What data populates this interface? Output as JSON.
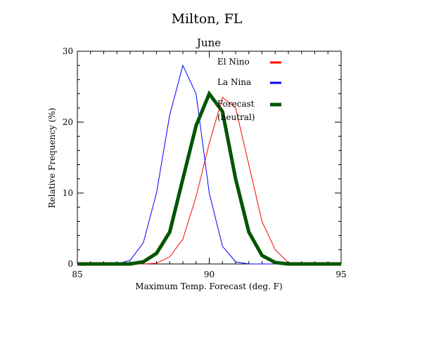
{
  "chart_data": {
    "type": "line",
    "title": "Milton, FL",
    "subtitle": "June",
    "xlabel": "Maximum Temp. Forecast (deg. F)",
    "ylabel": "Relative Frequency (%)",
    "xlim": [
      85,
      95
    ],
    "ylim": [
      0,
      30
    ],
    "x_ticks": [
      85,
      90,
      95
    ],
    "y_ticks": [
      0,
      10,
      20,
      30
    ],
    "x_tick_labels": [
      "85",
      "90",
      "95"
    ],
    "y_tick_labels": [
      "0",
      "10",
      "20",
      "30"
    ],
    "grid": false,
    "legend_position": "top-right",
    "series": [
      {
        "name": "El Nino",
        "color": "#ff0000",
        "style": "thin",
        "x": [
          85,
          86,
          87,
          87.5,
          88,
          88.5,
          89,
          89.5,
          90,
          90.5,
          91,
          91.5,
          92,
          92.5,
          93,
          93.5,
          94,
          95
        ],
        "y": [
          0,
          0,
          0,
          0,
          0.1,
          1,
          3.5,
          9.5,
          17,
          23.5,
          22,
          14,
          6,
          2,
          0.2,
          0,
          0,
          0
        ]
      },
      {
        "name": "La Nina",
        "color": "#0000ff",
        "style": "thin",
        "x": [
          85,
          86,
          86.5,
          87,
          87.5,
          88,
          88.5,
          89,
          89.5,
          90,
          90.5,
          91,
          91.5,
          92,
          93,
          94,
          95
        ],
        "y": [
          0,
          0,
          0,
          0.5,
          3,
          10,
          21,
          28,
          24,
          10,
          2.5,
          0.3,
          0,
          0,
          0,
          0,
          0
        ]
      },
      {
        "name": "Forecast\n(neutral)",
        "color": "#005500",
        "style": "thick",
        "x": [
          85,
          86,
          87,
          87.5,
          88,
          88.5,
          89,
          89.5,
          90,
          90.5,
          91,
          91.5,
          92,
          92.5,
          93,
          94,
          95
        ],
        "y": [
          0,
          0,
          0,
          0.3,
          1.5,
          4.5,
          12,
          19.5,
          24,
          21.5,
          12,
          4.5,
          1.2,
          0.2,
          0,
          0,
          0
        ]
      }
    ],
    "legend": [
      {
        "label": "El Nino",
        "color": "#ff0000"
      },
      {
        "label": "La Nina",
        "color": "#0000ff"
      },
      {
        "label_lines": [
          "Forecast",
          "(neutral)"
        ],
        "color": "#005500"
      }
    ]
  }
}
